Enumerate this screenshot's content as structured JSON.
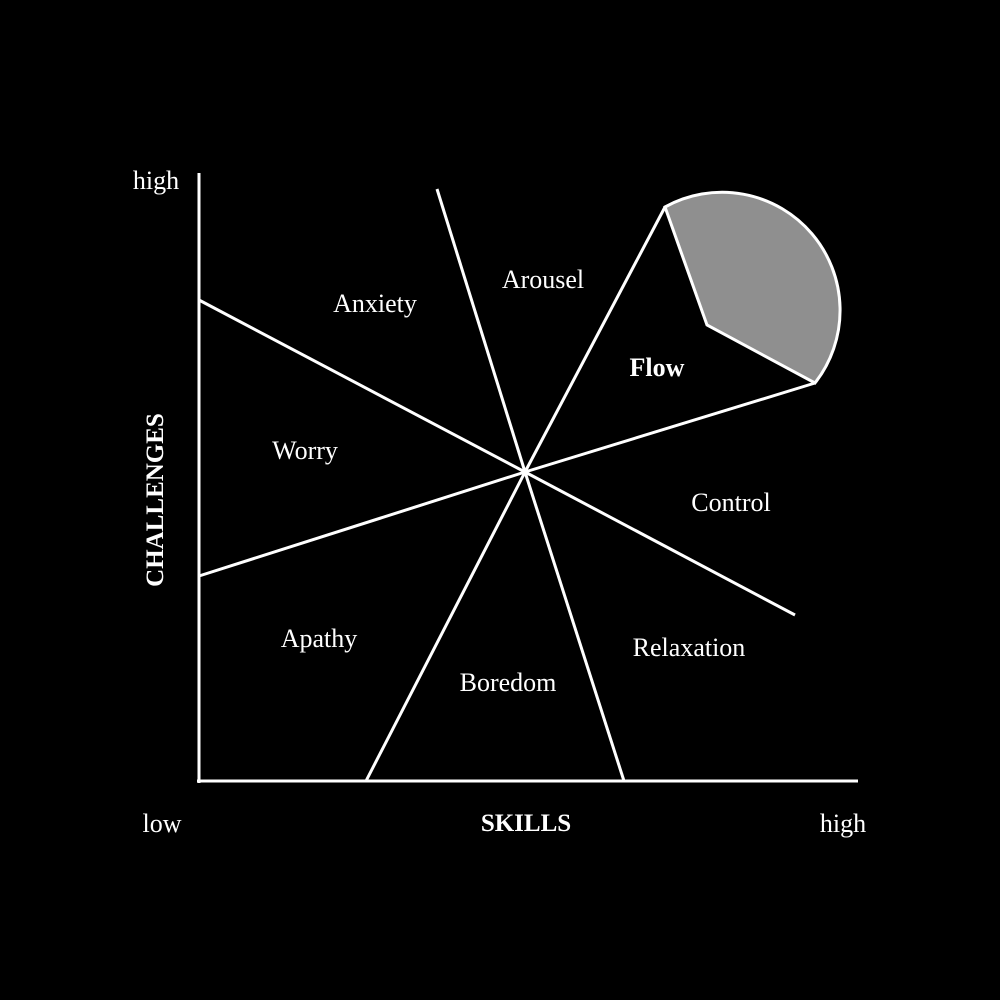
{
  "axes": {
    "x_title": "SKILLS",
    "y_title": "CHALLENGES",
    "x_low": "low",
    "x_high": "high",
    "y_high": "high"
  },
  "regions": {
    "anxiety": "Anxiety",
    "arousal": "Arousel",
    "flow": "Flow",
    "worry": "Worry",
    "control": "Control",
    "apathy": "Apathy",
    "boredom": "Boredom",
    "relaxation": "Relaxation"
  },
  "colors": {
    "background": "#000000",
    "lines": "#ffffff",
    "flow_highlight": "#8f8f8f"
  }
}
